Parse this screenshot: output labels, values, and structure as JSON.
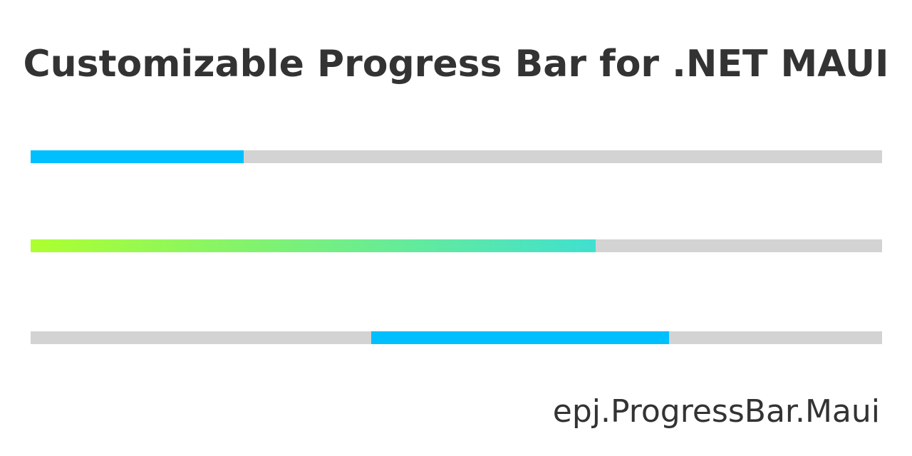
{
  "title": "Customizable Progress Bar for .NET MAUI",
  "package_name": "epj.ProgressBar.Maui",
  "colors": {
    "text": "#333333",
    "track": "#d3d3d3",
    "accent_blue": "#00bfff",
    "gradient_start": "#adff2f",
    "gradient_end": "#40e0d0",
    "background": "#ffffff"
  },
  "progress_bars": [
    {
      "style": "solid",
      "color": "#00bfff",
      "progress_start": 0.0,
      "progress_end": 0.25
    },
    {
      "style": "gradient",
      "gradient": [
        "#adff2f",
        "#40e0d0"
      ],
      "progress_start": 0.0,
      "progress_end": 0.664
    },
    {
      "style": "indeterminate-segment",
      "color": "#00bfff",
      "progress_start": 0.4,
      "progress_end": 0.75
    }
  ]
}
